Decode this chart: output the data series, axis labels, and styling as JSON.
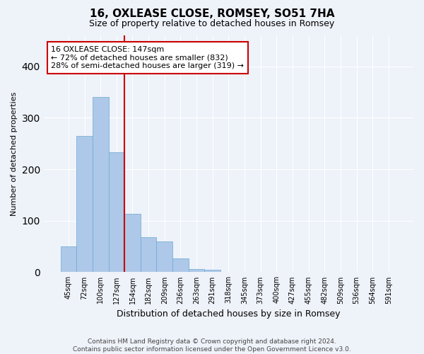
{
  "title": "16, OXLEASE CLOSE, ROMSEY, SO51 7HA",
  "subtitle": "Size of property relative to detached houses in Romsey",
  "xlabel": "Distribution of detached houses by size in Romsey",
  "ylabel": "Number of detached properties",
  "categories": [
    "45sqm",
    "72sqm",
    "100sqm",
    "127sqm",
    "154sqm",
    "182sqm",
    "209sqm",
    "236sqm",
    "263sqm",
    "291sqm",
    "318sqm",
    "345sqm",
    "373sqm",
    "400sqm",
    "427sqm",
    "455sqm",
    "482sqm",
    "509sqm",
    "536sqm",
    "564sqm",
    "591sqm"
  ],
  "values": [
    50,
    265,
    340,
    233,
    114,
    68,
    60,
    27,
    6,
    5,
    0,
    1,
    0,
    1,
    0,
    0,
    0,
    0,
    0,
    0,
    1
  ],
  "bar_color": "#adc8e8",
  "bar_edge_color": "#6aaad4",
  "marker_line_color": "#cc0000",
  "annotation_line1": "16 OXLEASE CLOSE: 147sqm",
  "annotation_line2": "← 72% of detached houses are smaller (832)",
  "annotation_line3": "28% of semi-detached houses are larger (319) →",
  "annotation_box_color": "#ffffff",
  "annotation_box_edge_color": "#cc0000",
  "footer_text": "Contains HM Land Registry data © Crown copyright and database right 2024.\nContains public sector information licensed under the Open Government Licence v3.0.",
  "ylim": [
    0,
    460
  ],
  "background_color": "#eef2f9",
  "grid_color": "#ffffff",
  "title_fontsize": 11,
  "subtitle_fontsize": 9,
  "ylabel_fontsize": 8,
  "xlabel_fontsize": 9,
  "tick_fontsize": 7,
  "footer_fontsize": 6.5,
  "annotation_fontsize": 8
}
